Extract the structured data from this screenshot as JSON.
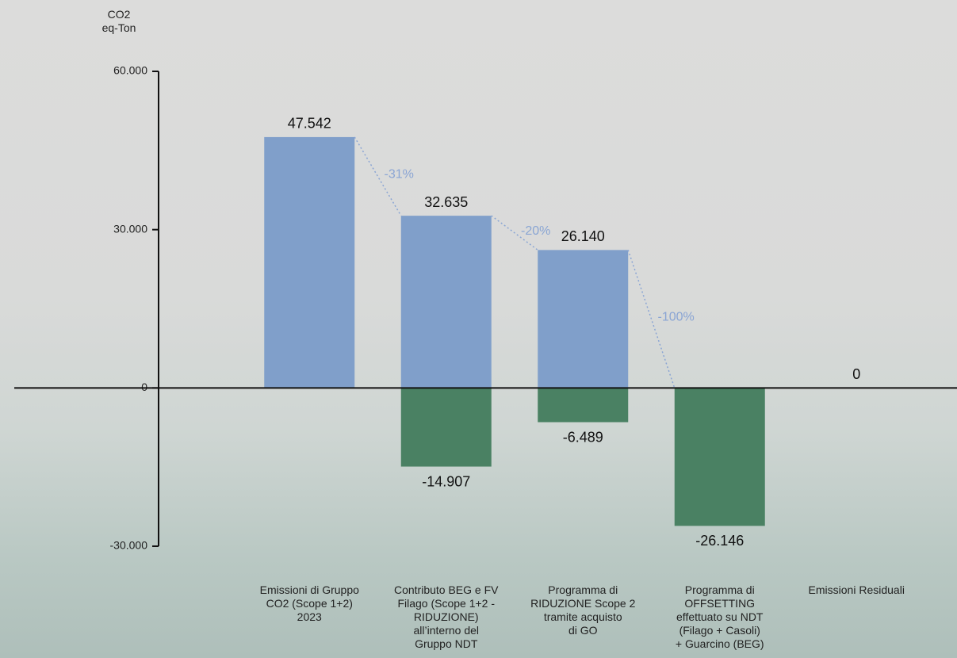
{
  "chart_data": {
    "type": "bar",
    "ylabel": "CO2\neq-Ton",
    "categories": [
      "Emissioni di Gruppo\nCO2 (Scope 1+2)\n2023",
      "Contributo BEG e FV\nFilago (Scope 1+2 -\nRIDUZIONE)\nall’interno del\nGruppo NDT",
      "Programma di\nRIDUZIONE Scope 2\ntramite acquisto\ndi GO",
      "Programma di\nOFFSETTING\neffettuato su NDT\n(Filago + Casoli)\n+ Guarcino (BEG)",
      "Emissioni Residuali"
    ],
    "series": [
      {
        "color": "#809fca",
        "values": [
          47542,
          32635,
          26140,
          null,
          0
        ],
        "value_labels": [
          "47.542",
          "32.635",
          "26.140",
          null,
          "0"
        ]
      },
      {
        "color": "#4a8163",
        "values": [
          null,
          -14907,
          -6489,
          -26146,
          null
        ],
        "value_labels": [
          null,
          "-14.907",
          "-6.489",
          "-26.146",
          null
        ]
      }
    ],
    "changes": {
      "color": "#8aa5d4",
      "values": [
        -31,
        -20,
        -100
      ],
      "value_labels": [
        "-31%",
        "-20%",
        "-100%"
      ]
    },
    "ylim": [
      -30000,
      60000
    ],
    "yticks": [
      {
        "value": -30000,
        "label": "-30.000"
      },
      0,
      {
        "value": 30000,
        "label": "30.000"
      },
      {
        "value": 60000,
        "label": "60.000"
      }
    ]
  }
}
